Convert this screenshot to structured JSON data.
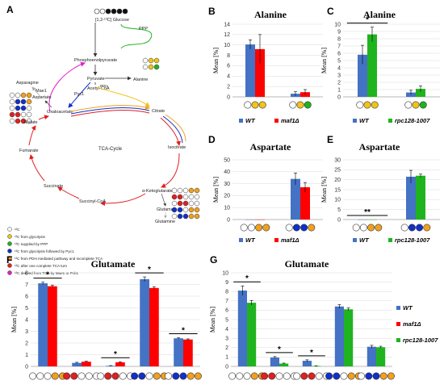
{
  "figure": {
    "panel_a": {
      "letter": "A",
      "glucose_label": "[1,2-¹³C] Glucose",
      "metabolites": [
        "PPP",
        "Phosphoenolpyruvate",
        "Pyruvate",
        "Acetyl-CoA",
        "Alanine",
        "Asparagine",
        "Aspartate",
        "Oxaloacetate",
        "Citrate",
        "Isocitrate",
        "TCA-Cycle",
        "Malate",
        "Fumarate",
        "Succinate",
        "Succinyl-CoA",
        "α-Ketoglutarate",
        "Glutamate",
        "Glutamine"
      ],
      "enzymes": [
        "Pyc1",
        "Mae1",
        "PDH"
      ],
      "key": [
        "¹²C",
        "¹³C from glycolysis",
        "¹³C supplied by PPP",
        "¹³C from glycolysis followed by Pyc1",
        "¹³C from PDH mediated pathway and incomplete TCA",
        "¹³C after one complete TCA turn",
        "¹³C derived from TCA by Mae1 or Pck1"
      ],
      "colors": {
        "glycolysis": "#f0c419",
        "ppp": "#1db31d",
        "pyc1": "#1030c8",
        "pdh": "#f0a020",
        "tca": "#e02020",
        "mae1": "#e020c8",
        "asparagine": "#aaaaaa"
      }
    },
    "legend_labels": {
      "wt": "WT",
      "maf1": "maf1Δ",
      "rpc": "rpc128-1007"
    },
    "series_colors": {
      "wt": "#4472c4",
      "maf1": "#ff0000",
      "rpc": "#1fb41f"
    },
    "ylabel": "Mean [%]",
    "significance": {
      "one": "*",
      "two": "**"
    }
  },
  "chart_data": [
    {
      "panel": "B",
      "type": "bar",
      "title": "Alanine",
      "ylim": [
        0,
        14
      ],
      "ticks": [
        0,
        2,
        4,
        6,
        8,
        10,
        12,
        14
      ],
      "series": [
        {
          "name": "WT",
          "values": [
            10.1,
            0.6
          ],
          "err": [
            0.9,
            0.4
          ]
        },
        {
          "name": "maf1Δ",
          "values": [
            9.2,
            0.9
          ],
          "err": [
            2.8,
            0.5
          ]
        }
      ],
      "isotopologues": [
        [
          "w",
          "y",
          "y"
        ],
        [
          "w",
          "y",
          "g"
        ]
      ],
      "sig": []
    },
    {
      "panel": "C",
      "type": "bar",
      "title": "Alanine",
      "ylim": [
        0,
        10
      ],
      "ticks": [
        0,
        1,
        2,
        3,
        4,
        5,
        6,
        7,
        8,
        9,
        10
      ],
      "series": [
        {
          "name": "WT",
          "values": [
            5.8,
            0.6
          ],
          "err": [
            1.3,
            0.3
          ]
        },
        {
          "name": "rpc128-1007",
          "values": [
            8.6,
            1.1
          ],
          "err": [
            1.0,
            0.4
          ]
        }
      ],
      "isotopologues": [
        [
          "w",
          "y",
          "y"
        ],
        [
          "w",
          "y",
          "g"
        ]
      ],
      "sig": [
        {
          "group": 0,
          "label": "*"
        }
      ]
    },
    {
      "panel": "D",
      "type": "bar",
      "title": "Aspartate",
      "ylim": [
        0,
        50
      ],
      "ticks": [
        0,
        10,
        20,
        30,
        40,
        50
      ],
      "series": [
        {
          "name": "WT",
          "values": [
            0,
            34
          ],
          "err": [
            0,
            5
          ]
        },
        {
          "name": "maf1Δ",
          "values": [
            0,
            27
          ],
          "err": [
            0,
            4
          ]
        }
      ],
      "isotopologues": [
        [
          "w",
          "w",
          "o",
          "o"
        ],
        [
          "w",
          "b",
          "b",
          "o"
        ]
      ],
      "sig": []
    },
    {
      "panel": "E",
      "type": "bar",
      "title": "Aspartate",
      "ylim": [
        0,
        30
      ],
      "ticks": [
        0,
        5,
        10,
        15,
        20,
        25,
        30
      ],
      "series": [
        {
          "name": "WT",
          "values": [
            0,
            21.5
          ],
          "err": [
            0,
            3.2
          ]
        },
        {
          "name": "rpc128-1007",
          "values": [
            0,
            22
          ],
          "err": [
            0,
            0.8
          ]
        }
      ],
      "isotopologues": [
        [
          "w",
          "w",
          "o",
          "o"
        ],
        [
          "w",
          "b",
          "b",
          "o"
        ]
      ],
      "sig": [
        {
          "group": 0,
          "label": "**"
        }
      ]
    },
    {
      "panel": "F",
      "type": "bar",
      "title": "Glutamate",
      "ylim": [
        0,
        8
      ],
      "ticks": [
        0,
        1,
        2,
        3,
        4,
        5,
        6,
        7,
        8
      ],
      "series": [
        {
          "name": "WT",
          "values": [
            7.1,
            0.3,
            0.05,
            7.45,
            2.4
          ],
          "err": [
            0.1,
            0.05,
            0.02,
            0.2,
            0.05
          ]
        },
        {
          "name": "maf1Δ",
          "values": [
            6.85,
            0.4,
            0.35,
            6.7,
            2.3
          ],
          "err": [
            0.1,
            0.05,
            0.05,
            0.1,
            0.05
          ]
        }
      ],
      "isotopologues": [
        [
          "w",
          "w",
          "w",
          "o",
          "o"
        ],
        [
          "r",
          "r",
          "w",
          "w",
          "w"
        ],
        [
          "w",
          "r",
          "r",
          "w",
          "w"
        ],
        [
          "b",
          "b",
          "w",
          "o",
          "o"
        ],
        [
          "w",
          "b",
          "b",
          "o",
          "o"
        ]
      ],
      "sig": [
        {
          "group": 0,
          "label": "*"
        },
        {
          "group": 2,
          "label": "*"
        },
        {
          "group": 3,
          "label": "*"
        },
        {
          "group": 4,
          "label": "*"
        }
      ]
    },
    {
      "panel": "G",
      "type": "bar",
      "title": "Glutamate",
      "ylim": [
        0,
        10
      ],
      "ticks": [
        0,
        1,
        2,
        3,
        4,
        5,
        6,
        7,
        8,
        9,
        10
      ],
      "series": [
        {
          "name": "WT",
          "values": [
            8.1,
            0.95,
            0.6,
            6.4,
            2.1
          ],
          "err": [
            0.5,
            0.1,
            0.1,
            0.2,
            0.15
          ]
        },
        {
          "name": "rpc128-1007",
          "values": [
            6.8,
            0.3,
            0.05,
            6.1,
            2.05
          ],
          "err": [
            0.25,
            0.05,
            0.02,
            0.15,
            0.1
          ]
        }
      ],
      "isotopologues": [
        [
          "w",
          "w",
          "w",
          "o",
          "o"
        ],
        [
          "r",
          "r",
          "w",
          "w",
          "w"
        ],
        [
          "w",
          "r",
          "r",
          "w",
          "w"
        ],
        [
          "b",
          "b",
          "w",
          "o",
          "o"
        ],
        [
          "w",
          "b",
          "b",
          "o",
          "o"
        ]
      ],
      "sig": [
        {
          "group": 0,
          "label": "*"
        },
        {
          "group": 1,
          "label": "*"
        },
        {
          "group": 2,
          "label": "*"
        }
      ]
    }
  ]
}
